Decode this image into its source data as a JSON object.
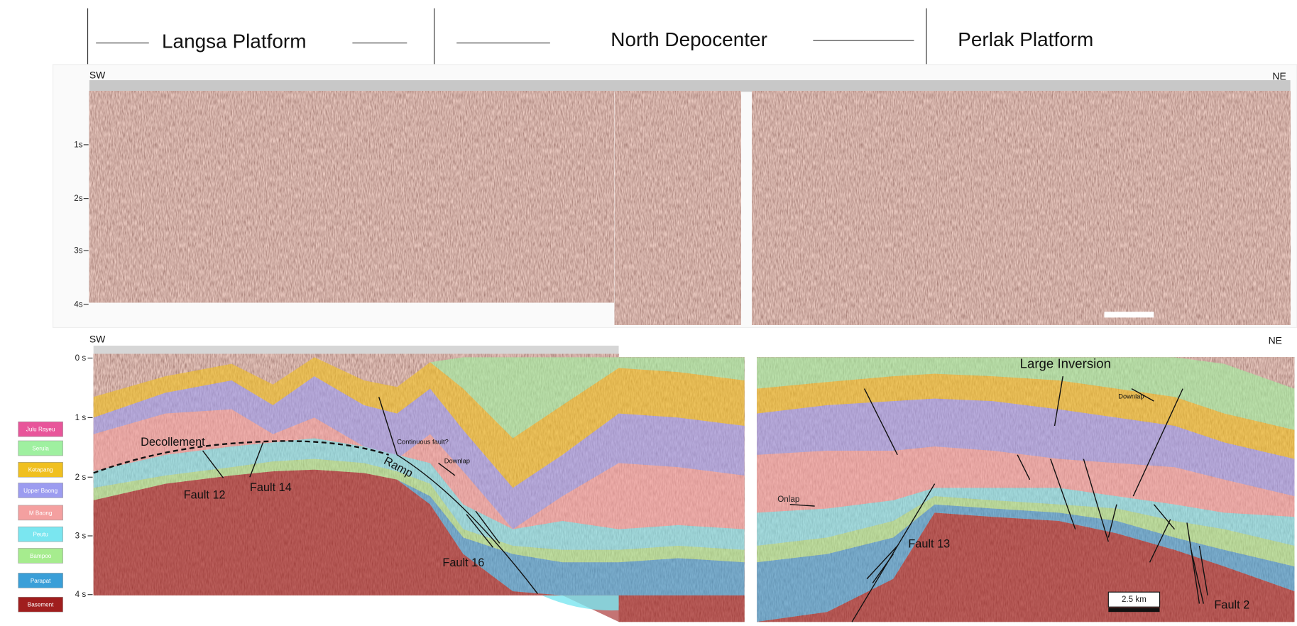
{
  "header": {
    "sections": [
      "Langsa Platform",
      "North Depocenter",
      "Perlak Platform"
    ]
  },
  "top_panel": {
    "left_label": "SW",
    "right_label": "NE",
    "time_ticks": [
      "1s",
      "2s",
      "3s",
      "4s"
    ]
  },
  "bottom_panel": {
    "left_label": "SW",
    "right_label": "NE",
    "time_ticks": [
      "0 s",
      "1 s",
      "2 s",
      "3 s",
      "4 s"
    ],
    "annotations": [
      "Decollement",
      "Fault 12",
      "Fault 14",
      "Ramp",
      "Continuous fault?",
      "Downlap",
      "Fault 16",
      "Large Inversion",
      "Downlap",
      "Onlap",
      "Fault 13",
      "Fault 2"
    ],
    "scale_bar": "2.5 km"
  },
  "legend": {
    "items": [
      {
        "name": "Julu Rayeu",
        "color": "#e8559a"
      },
      {
        "name": "Serula",
        "color": "#9ff0a0"
      },
      {
        "name": "Ketapang",
        "color": "#f0c020"
      },
      {
        "name": "Upper Baong",
        "color": "#9c9cf0"
      },
      {
        "name": "M Baong",
        "color": "#f4a0a0"
      },
      {
        "name": "Peutu",
        "color": "#7ae6f0"
      },
      {
        "name": "Bampoo",
        "color": "#a6ec8e"
      },
      {
        "name": "Parapat",
        "color": "#3a9fd8"
      },
      {
        "name": "Basement",
        "color": "#a01e1e"
      }
    ]
  }
}
